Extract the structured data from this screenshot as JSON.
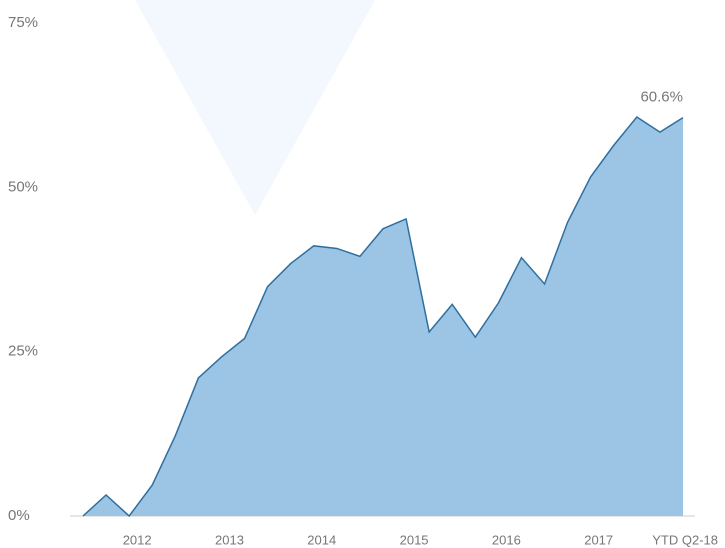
{
  "chart_data": {
    "type": "area",
    "categories": [
      null,
      null,
      "2012",
      null,
      null,
      null,
      "2013",
      null,
      null,
      null,
      "2014",
      null,
      null,
      null,
      "2015",
      null,
      null,
      null,
      "2016",
      null,
      null,
      null,
      "2017",
      null,
      null,
      null,
      "YTD Q2-18"
    ],
    "series": [
      {
        "color": "#9cc5e5",
        "values": [
          0,
          3.2,
          0,
          4.7,
          12.2,
          21,
          24.2,
          27,
          34.9,
          38.4,
          41.1,
          40.7,
          39.5,
          43.7,
          45.2,
          28,
          32.2,
          27.2,
          32.4,
          39.3,
          35.3,
          44.7,
          51.6,
          56.4,
          60.7,
          58.4,
          60.6
        ],
        "value_labels": [
          null,
          null,
          null,
          null,
          null,
          null,
          null,
          null,
          null,
          null,
          null,
          null,
          null,
          null,
          null,
          null,
          null,
          null,
          null,
          null,
          null,
          null,
          null,
          null,
          null,
          null,
          "60.6%"
        ]
      }
    ],
    "ylim": [
      0,
      75
    ],
    "yticks": [
      {
        "value": 0,
        "label": "0%"
      },
      {
        "value": 25,
        "label": "25%"
      },
      {
        "value": 50,
        "label": "50%"
      },
      {
        "value": 75,
        "label": "75%"
      }
    ]
  }
}
